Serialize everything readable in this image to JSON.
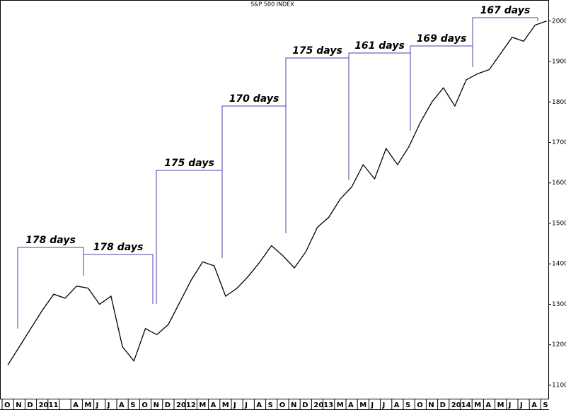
{
  "chart_data": {
    "type": "line",
    "title": "S&P 500 INDEX",
    "categories": [
      "O",
      "N",
      "D",
      "2011",
      null,
      null,
      "A",
      "M",
      "J",
      "J",
      "A",
      "S",
      "O",
      "N",
      "D",
      "2012",
      null,
      "M",
      "A",
      "M",
      "J",
      "J",
      "A",
      "S",
      "O",
      "N",
      "D",
      "2013",
      null,
      "M",
      "A",
      "M",
      "J",
      "J",
      "A",
      "S",
      "O",
      "N",
      "D",
      "2014",
      null,
      "M",
      "A",
      "M",
      "J",
      "J",
      "A",
      "S"
    ],
    "values": [
      1150,
      1195,
      1240,
      1285,
      1325,
      1315,
      1345,
      1340,
      1300,
      1320,
      1195,
      1160,
      1240,
      1225,
      1250,
      1305,
      1360,
      1405,
      1395,
      1320,
      1340,
      1370,
      1405,
      1445,
      1420,
      1390,
      1430,
      1490,
      1515,
      1560,
      1590,
      1645,
      1610,
      1685,
      1645,
      1690,
      1750,
      1800,
      1835,
      1790,
      1855,
      1870,
      1880,
      1920,
      1960,
      1950,
      1990,
      2000
    ],
    "color": "#000000",
    "ylim": [
      1065,
      2052
    ],
    "yticks": [
      1100,
      1200,
      1300,
      1400,
      1500,
      1600,
      1700,
      1800,
      1900,
      2000
    ],
    "annotations": [
      {
        "text": "178 days"
      },
      {
        "text": "178 days"
      },
      {
        "text": "175 days"
      },
      {
        "text": "170 days"
      },
      {
        "text": "175 days"
      },
      {
        "text": "161 days"
      },
      {
        "text": "169 days"
      },
      {
        "text": "167 days"
      }
    ]
  }
}
